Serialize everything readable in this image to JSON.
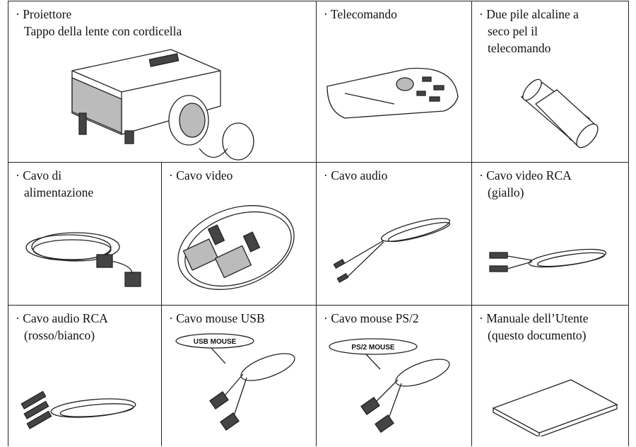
{
  "table": {
    "rows": [
      [
        {
          "lines": [
            "· Proiettore",
            "Tappo della lente con cordicella"
          ]
        },
        {
          "lines": [
            "· Telecomando"
          ]
        },
        {
          "lines": [
            "· Due pile alcaline a",
            "seco pel il",
            "telecomando"
          ]
        }
      ],
      [
        {
          "lines": [
            "· Cavo di",
            "alimentazione"
          ]
        },
        {
          "lines": [
            "· Cavo video"
          ]
        },
        {
          "lines": [
            "· Cavo audio"
          ]
        },
        {
          "lines": [
            "· Cavo video RCA",
            "(giallo)"
          ]
        }
      ],
      [
        {
          "lines": [
            "· Cavo audio RCA",
            "(rosso/bianco)"
          ]
        },
        {
          "lines": [
            "· Cavo mouse USB"
          ],
          "tag": "USB MOUSE"
        },
        {
          "lines": [
            "· Cavo mouse PS/2"
          ],
          "tag": "PS/2 MOUSE"
        },
        {
          "lines": [
            "· Manuale dell’Utente",
            "(questo documento)"
          ]
        }
      ]
    ]
  }
}
